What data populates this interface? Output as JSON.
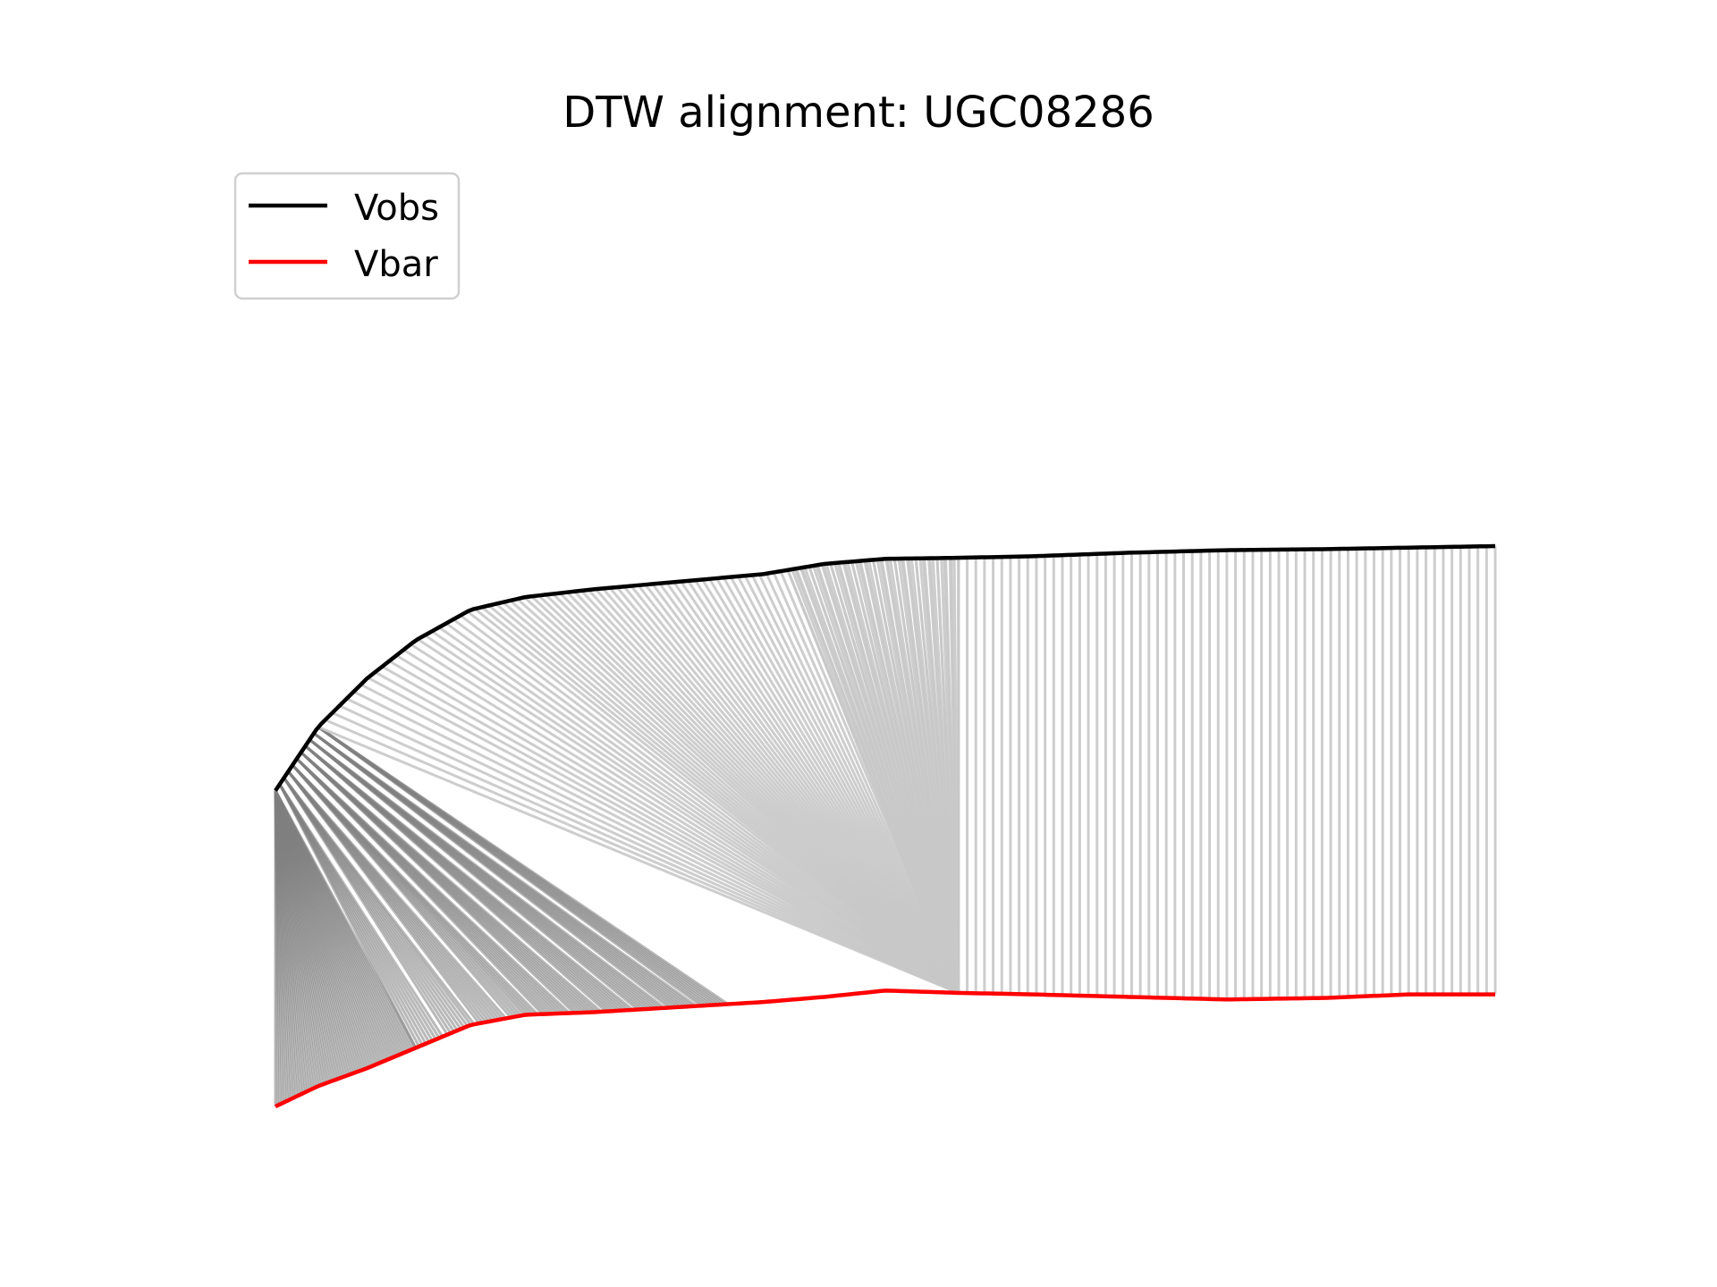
{
  "chart_data": {
    "type": "line",
    "title": "DTW alignment: UGC08286",
    "xlabel": "",
    "ylabel": "",
    "axes_visible": false,
    "grid": false,
    "legend": {
      "placement": "top-left",
      "entries": [
        "Vobs",
        "Vbar"
      ]
    },
    "colors": {
      "vobs": "#000000",
      "vbar": "#ff0000",
      "match_light": "#c8c8c8",
      "match_dense": "#808080"
    },
    "x_range": [
      0,
      1
    ],
    "series": [
      {
        "name": "Vobs",
        "color": "#000000",
        "x": [
          0.0,
          0.035,
          0.075,
          0.115,
          0.16,
          0.205,
          0.26,
          0.33,
          0.4,
          0.45,
          0.5,
          0.56,
          0.62,
          0.7,
          0.78,
          0.86,
          0.93,
          1.0
        ],
        "y": [
          0.62,
          0.745,
          0.84,
          0.915,
          0.975,
          1.0,
          1.015,
          1.03,
          1.045,
          1.065,
          1.075,
          1.077,
          1.08,
          1.087,
          1.092,
          1.094,
          1.097,
          1.1
        ]
      },
      {
        "name": "Vbar",
        "color": "#ff0000",
        "x": [
          0.0,
          0.035,
          0.075,
          0.115,
          0.16,
          0.205,
          0.26,
          0.33,
          0.4,
          0.45,
          0.5,
          0.56,
          0.62,
          0.7,
          0.78,
          0.86,
          0.93,
          1.0
        ],
        "y": [
          0.0,
          0.04,
          0.075,
          0.115,
          0.16,
          0.18,
          0.185,
          0.195,
          0.205,
          0.215,
          0.2275,
          0.223,
          0.22,
          0.215,
          0.21,
          0.213,
          0.22,
          0.22
        ]
      }
    ]
  }
}
